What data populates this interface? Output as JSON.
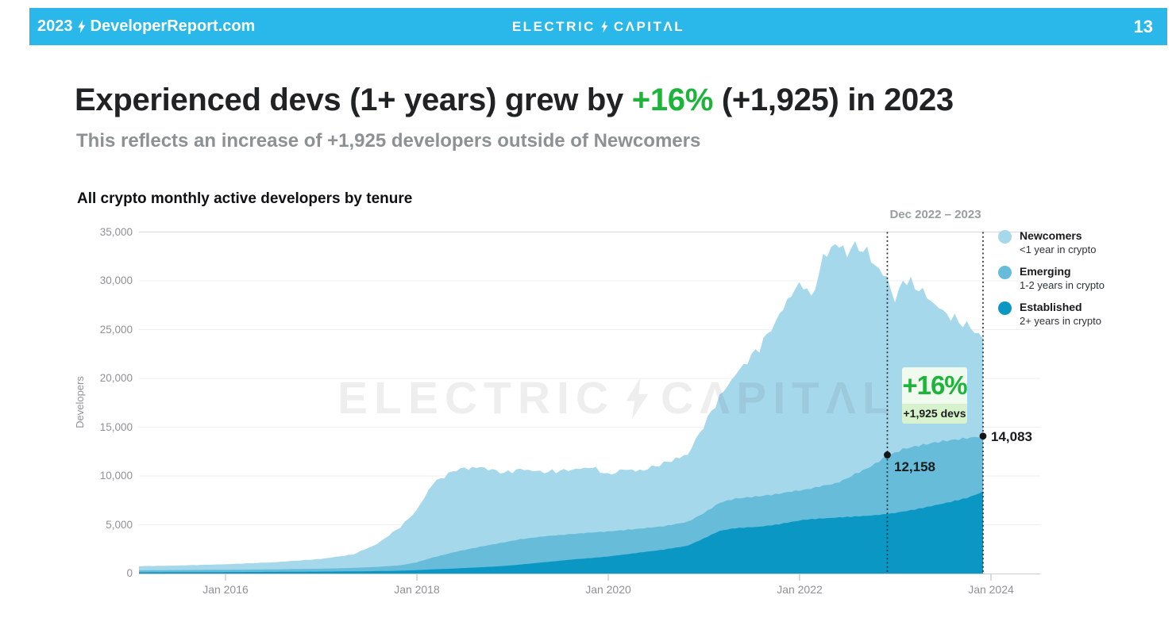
{
  "header": {
    "left_year": "2023",
    "left_site": "DeveloperReport.com",
    "brand_left": "ELECTRIC",
    "brand_right": "CΛPITΛL",
    "page": "13"
  },
  "title": {
    "prefix": "Experienced devs (1+ years) grew by ",
    "highlight": "+16%",
    "suffix": " (+1,925) in 2023"
  },
  "subtitle": "This reflects an increase of +1,925 developers outside of Newcomers",
  "chart_title": "All crypto monthly active developers by tenure",
  "annotation": {
    "range_label": "Dec 2022 – 2023",
    "badge_pct": "+16%",
    "badge_devs": "+1,925 devs",
    "point_start": "12,158",
    "point_end": "14,083"
  },
  "watermark": {
    "left": "ELECTRIC",
    "right": "CΛPITΛL"
  },
  "legend": {
    "items": [
      {
        "label": "Newcomers",
        "sublabel": "<1 year in crypto",
        "color": "#a6d8ec"
      },
      {
        "label": "Emerging",
        "sublabel": "1-2 years in crypto",
        "color": "#67bcda"
      },
      {
        "label": "Established",
        "sublabel": "2+ years in crypto",
        "color": "#0a97c4"
      }
    ]
  },
  "colors": {
    "header_cyan": "#29b8e9",
    "title_green": "#1db43a",
    "newcomers": "#a6d8ec",
    "emerging": "#67bcda",
    "established": "#0a97c4",
    "grid": "#efefef",
    "grid_top": "#d8d8d8",
    "axis_line": "#cccccc",
    "axis_tick": "#b7b7b7",
    "axis_text": "#8f9194",
    "dashed_line": "#2c2c2c",
    "dot": "#151515"
  },
  "chart_data": {
    "type": "area",
    "stacked": true,
    "title": "All crypto monthly active developers by tenure",
    "xlabel": "",
    "ylabel": "Developers",
    "ylim": [
      0,
      35000
    ],
    "grid": true,
    "legend_position": "right",
    "y_ticks": {
      "values": [
        35000,
        30000,
        25000,
        20000,
        15000,
        10000,
        5000,
        0
      ],
      "labels": [
        "35,000",
        "30,000",
        "25,000",
        "20,000",
        "15,000",
        "10,000",
        "5,000",
        "0"
      ]
    },
    "x_ticks": {
      "values": [
        2016,
        2018,
        2020,
        2022,
        2024
      ],
      "labels": [
        "Jan 2016",
        "Jan 2018",
        "Jan 2020",
        "Jan 2022",
        "Jan 2024"
      ]
    },
    "series_names": [
      "Established (2+ yrs)",
      "Emerging (1-2 yrs)",
      "Newcomers (<1 yr)"
    ],
    "anchor_columns": [
      "year",
      "established",
      "experienced_total_1plus",
      "all_devs_total"
    ],
    "anchors": [
      [
        2015.08,
        120,
        330,
        750
      ],
      [
        2015.5,
        140,
        360,
        820
      ],
      [
        2016.0,
        150,
        390,
        950
      ],
      [
        2016.5,
        170,
        430,
        1150
      ],
      [
        2017.0,
        200,
        500,
        1500
      ],
      [
        2017.33,
        220,
        570,
        1950
      ],
      [
        2017.58,
        250,
        680,
        3000
      ],
      [
        2017.83,
        290,
        850,
        4800
      ],
      [
        2018.0,
        350,
        1150,
        6500
      ],
      [
        2018.17,
        430,
        1650,
        9300
      ],
      [
        2018.42,
        530,
        2250,
        10700
      ],
      [
        2018.67,
        640,
        2750,
        10900
      ],
      [
        2018.92,
        780,
        3200,
        10300
      ],
      [
        2019.08,
        920,
        3500,
        10700
      ],
      [
        2019.33,
        1150,
        3800,
        10400
      ],
      [
        2019.58,
        1400,
        4000,
        10600
      ],
      [
        2019.83,
        1600,
        4200,
        10900
      ],
      [
        2020.0,
        1750,
        4300,
        10100
      ],
      [
        2020.17,
        1950,
        4450,
        10700
      ],
      [
        2020.33,
        2150,
        4600,
        10500
      ],
      [
        2020.58,
        2450,
        4850,
        11300
      ],
      [
        2020.83,
        2850,
        5300,
        12200
      ],
      [
        2021.0,
        3600,
        6200,
        15200
      ],
      [
        2021.17,
        4400,
        7300,
        18200
      ],
      [
        2021.33,
        4650,
        7700,
        20400
      ],
      [
        2021.58,
        4800,
        7950,
        23200
      ],
      [
        2021.75,
        5000,
        8150,
        25800
      ],
      [
        2021.92,
        5300,
        8450,
        28800
      ],
      [
        2022.04,
        5500,
        8600,
        29800
      ],
      [
        2022.12,
        5570,
        8750,
        28100
      ],
      [
        2022.25,
        5650,
        9050,
        32400
      ],
      [
        2022.37,
        5720,
        9250,
        33800
      ],
      [
        2022.5,
        5800,
        9800,
        32900
      ],
      [
        2022.58,
        5850,
        10250,
        33600
      ],
      [
        2022.67,
        5900,
        10650,
        33200
      ],
      [
        2022.75,
        5950,
        11050,
        32300
      ],
      [
        2022.83,
        6020,
        11550,
        31000
      ],
      [
        2022.9167,
        6100,
        12158,
        30400
      ],
      [
        2023.0,
        6220,
        12420,
        27700
      ],
      [
        2023.08,
        6350,
        12800,
        30200
      ],
      [
        2023.25,
        6650,
        13150,
        29200
      ],
      [
        2023.42,
        7000,
        13480,
        27500
      ],
      [
        2023.58,
        7350,
        13700,
        26300
      ],
      [
        2023.75,
        7750,
        13900,
        25400
      ],
      [
        2023.83,
        8050,
        13990,
        24900
      ],
      [
        2023.9167,
        8400,
        14083,
        24100
      ]
    ],
    "highlights": [
      {
        "t": 2022.9167,
        "value": 12158,
        "label": "12,158",
        "date": "Dec 2022"
      },
      {
        "t": 2023.9167,
        "value": 14083,
        "label": "14,083",
        "date": "Dec 2023"
      }
    ],
    "growth": {
      "pct": "+16%",
      "devs": "+1,925 devs"
    }
  }
}
